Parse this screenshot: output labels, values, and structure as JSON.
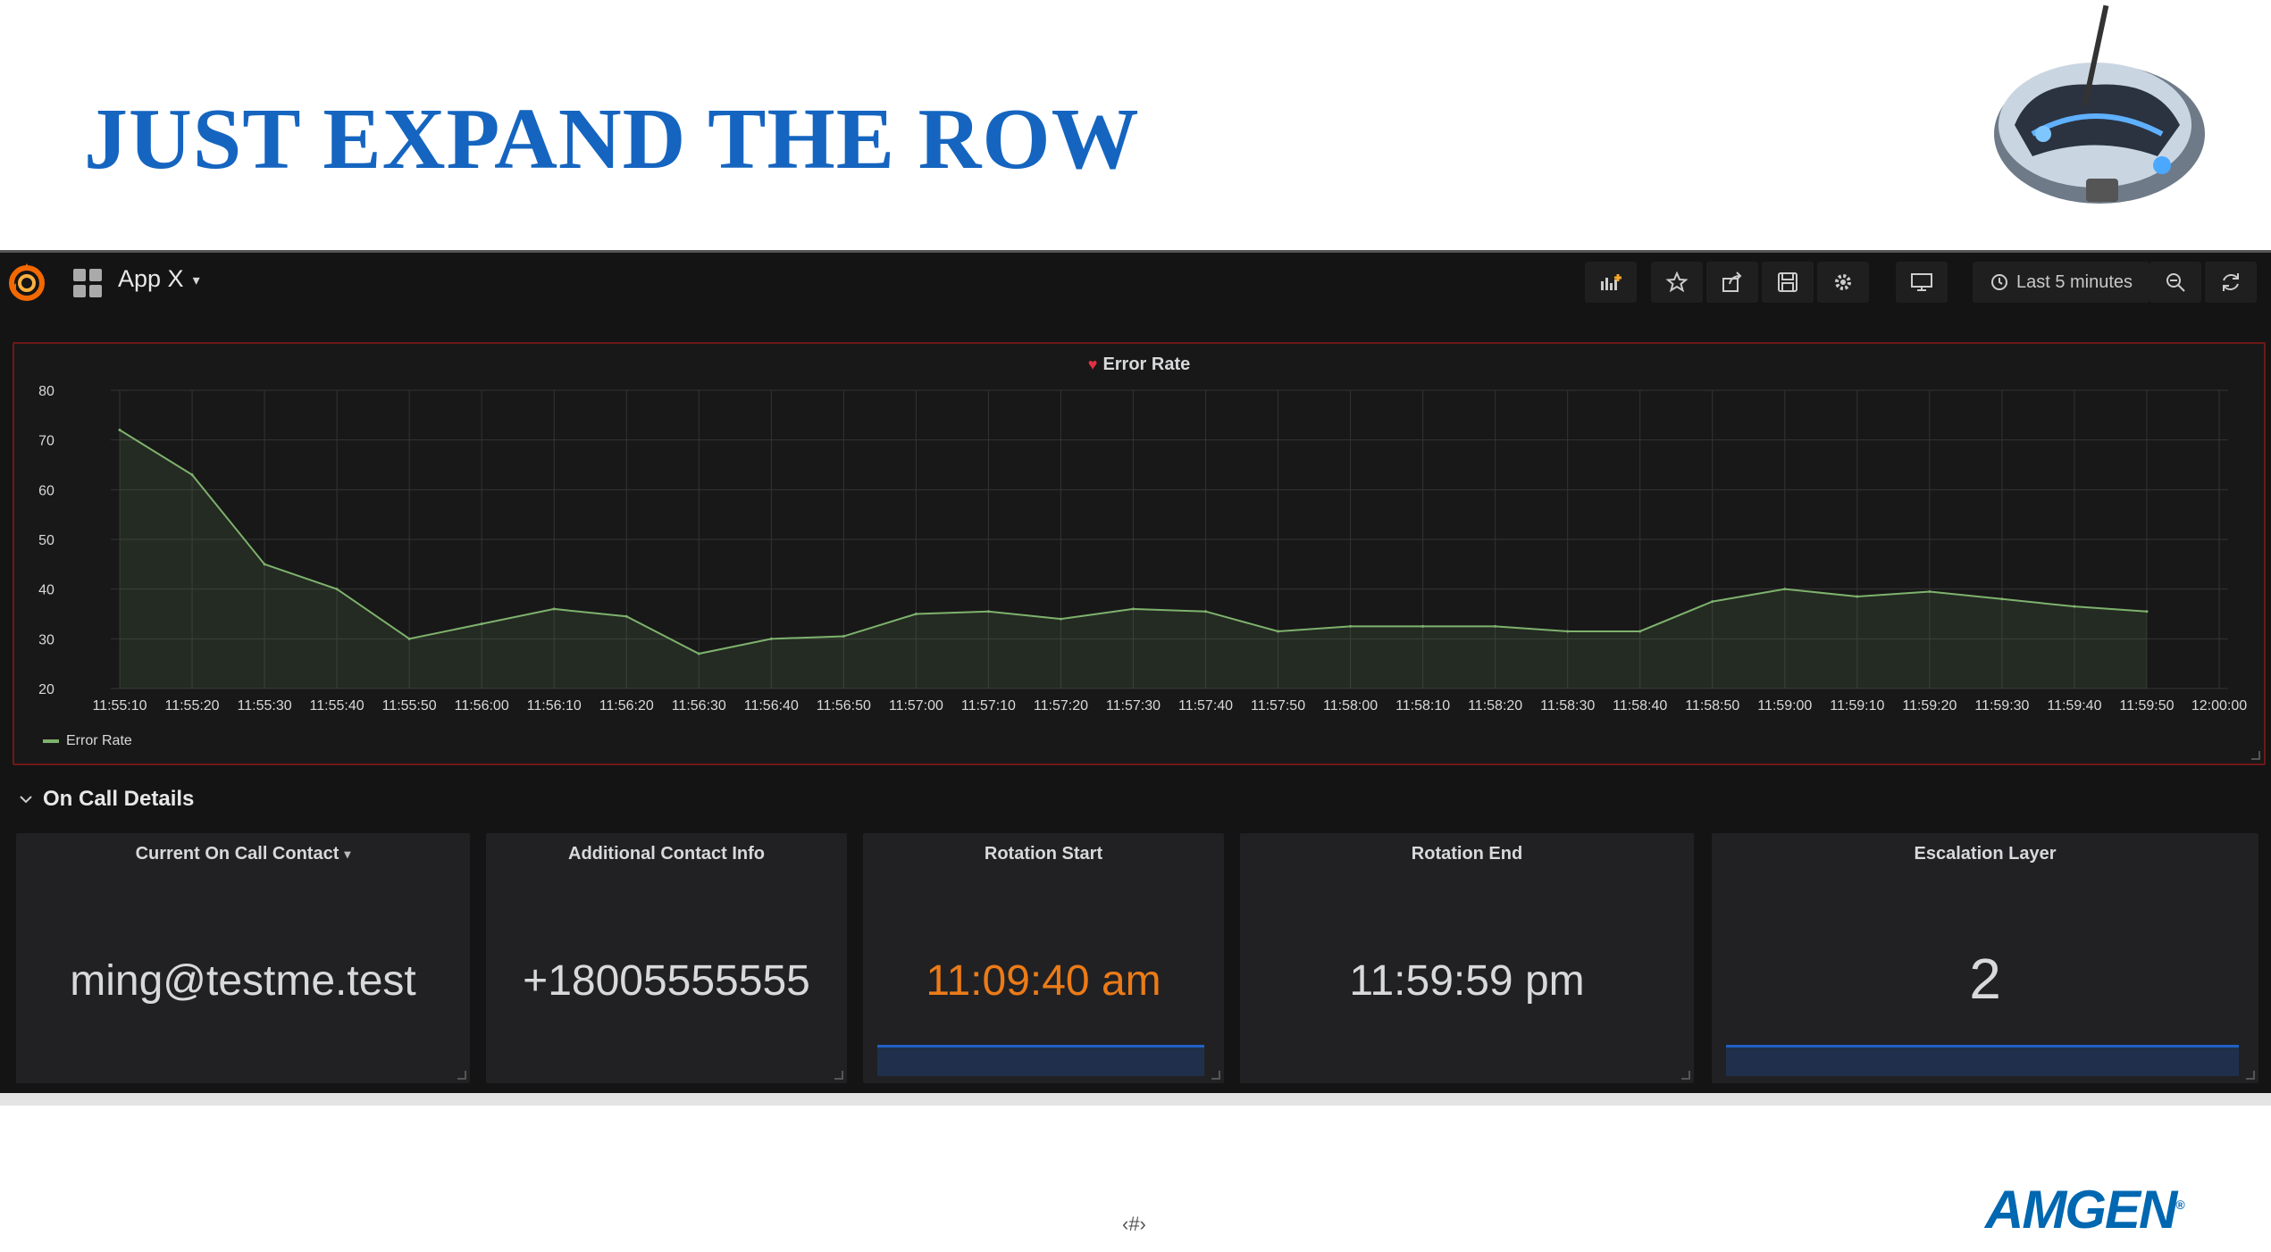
{
  "slide": {
    "title": "JUST EXPAND THE ROW",
    "page_mark": "‹#›",
    "logo_text": "AMGEN",
    "logo_mark": "®"
  },
  "topnav": {
    "dashboard_title": "App X",
    "caret": "▾",
    "time_range": "Last 5 minutes",
    "buttons": [
      "add-panel-icon",
      "star-icon",
      "share-icon",
      "save-icon",
      "settings-icon",
      "tv-mode-icon",
      "zoom-out-icon",
      "refresh-icon"
    ]
  },
  "graph_panel": {
    "title": "Error Rate",
    "legend": "Error Rate"
  },
  "chart_data": {
    "type": "area",
    "title": "Error Rate",
    "xlabel": "",
    "ylabel": "",
    "ylim": [
      20,
      80
    ],
    "y_ticks": [
      20,
      30,
      40,
      50,
      60,
      70,
      80
    ],
    "x_ticks": [
      "11:55:10",
      "11:55:20",
      "11:55:30",
      "11:55:40",
      "11:55:50",
      "11:56:00",
      "11:56:10",
      "11:56:20",
      "11:56:30",
      "11:56:40",
      "11:56:50",
      "11:57:00",
      "11:57:10",
      "11:57:20",
      "11:57:30",
      "11:57:40",
      "11:57:50",
      "11:58:00",
      "11:58:10",
      "11:58:20",
      "11:58:30",
      "11:58:40",
      "11:58:50",
      "11:59:00",
      "11:59:10",
      "11:59:20",
      "11:59:30",
      "11:59:40",
      "11:59:50",
      "12:00:00"
    ],
    "grid": true,
    "legend_position": "bottom-left",
    "colors": {
      "line": "#7eb26d",
      "grid": "#333333",
      "axis_text": "#d8d9da",
      "panel_border": "#6e1818"
    },
    "series": [
      {
        "name": "Error Rate",
        "x": [
          "11:55:10",
          "11:55:20",
          "11:55:30",
          "11:55:40",
          "11:55:50",
          "11:56:00",
          "11:56:10",
          "11:56:20",
          "11:56:30",
          "11:56:40",
          "11:56:50",
          "11:57:00",
          "11:57:10",
          "11:57:20",
          "11:57:30",
          "11:57:40",
          "11:57:50",
          "11:58:00",
          "11:58:10",
          "11:58:20",
          "11:58:30",
          "11:58:40",
          "11:58:50",
          "11:59:00",
          "11:59:10",
          "11:59:20",
          "11:59:30",
          "11:59:40",
          "11:59:50"
        ],
        "values": [
          72,
          63,
          45,
          40,
          30,
          33,
          36,
          34.5,
          27,
          30,
          30.5,
          35,
          35.5,
          34,
          36,
          35.5,
          31.5,
          32.5,
          32.5,
          32.5,
          31.5,
          31.5,
          37.5,
          40,
          38.5,
          39.5,
          38,
          36.5,
          35.5
        ]
      }
    ]
  },
  "row": {
    "title": "On Call Details"
  },
  "stats": [
    {
      "title": "Current On Call Contact",
      "caret": "▾",
      "value": "ming@testme.test",
      "color": "#d8d9da"
    },
    {
      "title": "Additional Contact Info",
      "value": "+18005555555",
      "color": "#d8d9da"
    },
    {
      "title": "Rotation Start",
      "value": "11:09:40 am",
      "color": "#eb7b18"
    },
    {
      "title": "Rotation End",
      "value": "11:59:59 pm",
      "color": "#d8d9da"
    },
    {
      "title": "Escalation Layer",
      "value": "2",
      "color": "#d8d9da"
    }
  ]
}
